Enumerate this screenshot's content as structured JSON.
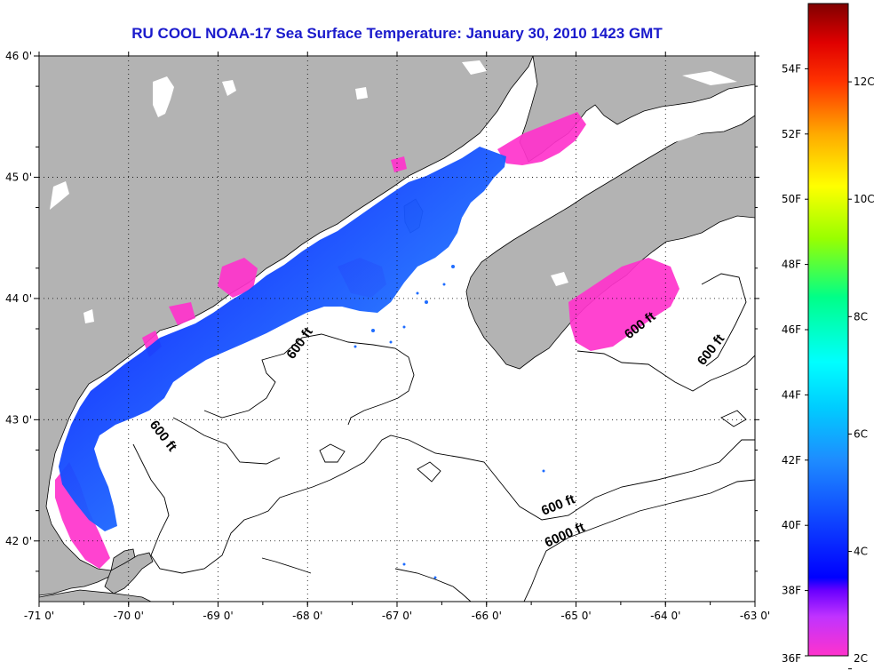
{
  "title": "RU COOL  NOAA-17  Sea Surface Temperature:  January 30, 2010 1423 GMT",
  "map": {
    "lon_range": [
      -71,
      -63
    ],
    "lat_range": [
      41.5,
      46
    ],
    "lon_ticks": [
      "-71 0'",
      "-70 0'",
      "-69 0'",
      "-68 0'",
      "-67 0'",
      "-66 0'",
      "-65 0'",
      "-64 0'",
      "-63 0'"
    ],
    "lat_ticks": [
      "46 0'",
      "45 0'",
      "44 0'",
      "43 0'",
      "42 0'"
    ],
    "land_color": "#b3b3b3",
    "water_color": "#ffffff",
    "contour_labels": [
      "600 ft",
      "600 ft",
      "600 ft",
      "600 ft",
      "600 ft",
      "6000 ft"
    ]
  },
  "colorbar": {
    "fahrenheit_labels": [
      "54F",
      "52F",
      "50F",
      "48F",
      "46F",
      "44F",
      "42F",
      "40F",
      "38F",
      "36F"
    ],
    "celsius_labels": [
      "12C",
      "10C",
      "8C",
      "6C",
      "4C",
      "2C"
    ],
    "colors": [
      "#ff33cc",
      "#9933ff",
      "#0000ff",
      "#00aaff",
      "#00ffff",
      "#00ff66",
      "#ccff00",
      "#ffff00",
      "#ffaa00",
      "#ff3300",
      "#cc0000",
      "#800000"
    ]
  }
}
